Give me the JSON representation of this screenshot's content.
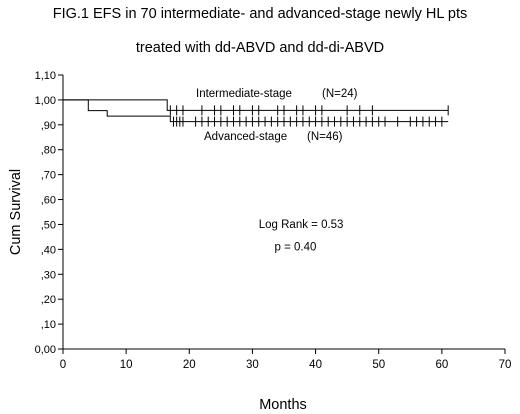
{
  "header": {
    "title_line1": "FIG.1  EFS in 70 intermediate- and advanced-stage newly HL pts",
    "title_line2": "treated with dd-ABVD  and dd-di-ABVD"
  },
  "chart_data": {
    "type": "line",
    "subtype": "kaplan-meier",
    "xlabel": "Months",
    "ylabel": "Cum Survival",
    "xlim": [
      0,
      70
    ],
    "ylim": [
      0,
      1.1
    ],
    "x_ticks": [
      0,
      10,
      20,
      30,
      40,
      50,
      60,
      70
    ],
    "y_ticks": [
      0,
      0.1,
      0.2,
      0.3,
      0.4,
      0.5,
      0.6,
      0.7,
      0.8,
      0.9,
      1.0,
      1.1
    ],
    "y_tick_labels": [
      "0,00",
      ",10",
      ",20",
      ",30",
      ",40",
      ",50",
      ",60",
      ",70",
      ",80",
      ",90",
      "1,00",
      "1,10"
    ],
    "x_tick_labels": [
      "0",
      "10",
      "20",
      "30",
      "40",
      "50",
      "60",
      "70"
    ],
    "grid": false,
    "series": [
      {
        "name": "Intermediate-stage",
        "label": "Intermediate-stage",
        "n_label": "(N=24)",
        "color": "#000000",
        "steps": [
          [
            0,
            1.0
          ],
          [
            16.5,
            1.0
          ],
          [
            16.5,
            0.958
          ],
          [
            61,
            0.958
          ]
        ],
        "censored": [
          17,
          18,
          19,
          22,
          24,
          25,
          27,
          28,
          30,
          31,
          34,
          35,
          37,
          38,
          40,
          41,
          45,
          47,
          49,
          61
        ]
      },
      {
        "name": "Advanced-stage",
        "label": "Advanced-stage",
        "n_label": "(N=46)",
        "color": "#000000",
        "steps": [
          [
            0,
            1.0
          ],
          [
            4,
            1.0
          ],
          [
            4,
            0.957
          ],
          [
            7,
            0.957
          ],
          [
            7,
            0.935
          ],
          [
            17,
            0.935
          ],
          [
            17,
            0.913
          ],
          [
            61,
            0.913
          ]
        ],
        "censored": [
          17.5,
          18,
          18.5,
          19,
          21,
          22,
          23,
          24,
          25,
          26,
          27,
          28,
          29,
          30,
          31,
          32,
          33,
          34,
          35,
          36,
          37,
          38,
          39,
          40,
          41,
          42,
          43,
          44,
          45,
          46,
          47,
          48,
          49,
          50,
          51,
          53,
          55,
          56,
          57,
          58,
          59,
          60
        ]
      }
    ],
    "annotations": [
      {
        "text": "Log Rank = 0.53",
        "x": 31,
        "y": 0.485
      },
      {
        "text": "p = 0.40",
        "x": 33.5,
        "y": 0.395
      }
    ]
  }
}
